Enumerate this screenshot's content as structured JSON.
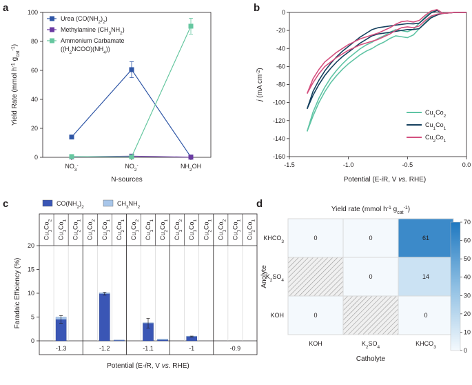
{
  "chart_data": [
    {
      "panel": "a",
      "type": "line",
      "xlabel": "N-sources",
      "ylabel": "Yield Rate (mmol h⁻¹ g₍cat₎⁻¹)",
      "ylabel_parts": {
        "main": "Yield Rate (mmol h",
        "sup1": "-1",
        "mid": " g",
        "sub": "cat",
        "sup2": "-1",
        "end": ")"
      },
      "categories": [
        "NO3-",
        "NO2-",
        "NH2OH"
      ],
      "category_labels": [
        {
          "main": "NO",
          "sub": "3",
          "sup": "-"
        },
        {
          "main": "NO",
          "sub": "2",
          "sup": "-"
        },
        {
          "main": "NH",
          "sub": "2",
          "end": "OH"
        }
      ],
      "ylim": [
        0,
        100
      ],
      "yticks": [
        0,
        20,
        40,
        60,
        80,
        100
      ],
      "series": [
        {
          "name": "Urea (CO(NH2)2)",
          "label_parts": {
            "main": "Urea (CO(NH",
            "sub": "2",
            "end": ")",
            "sub2": "2",
            "end2": ")"
          },
          "color": "#2f56a6",
          "values": [
            14,
            60.5,
            0.2
          ],
          "errors": [
            0.8,
            5.5,
            0.3
          ]
        },
        {
          "name": "Methylamine (CH3NH2)",
          "label_parts": {
            "main": "Methylamine (CH",
            "sub": "3",
            "end": "NH",
            "sub2": "2",
            "end2": ")"
          },
          "color": "#6a3aa2",
          "values": [
            0.3,
            0.8,
            0.1
          ],
          "errors": [
            0.2,
            0.3,
            0.2
          ]
        },
        {
          "name": "Ammonium Carbamate ((H2NCOO)(NH4))",
          "label_line1": "Ammonium Carbamate",
          "label_parts": {
            "main": "((H",
            "sub": "2",
            "end": "NCOO)(NH",
            "sub2": "4",
            "end2": "))"
          },
          "color": "#66c7a0",
          "values": [
            0.5,
            0.3,
            90.5
          ],
          "errors": [
            0.3,
            0.2,
            5.5
          ]
        }
      ]
    },
    {
      "panel": "b",
      "type": "line",
      "xlabel": "Potential (E-iR, V vs. RHE)",
      "xlabel_parts": {
        "a": "Potential (E-",
        "i": "i",
        "b": "R, V ",
        "vs": "vs.",
        "c": " RHE)"
      },
      "ylabel": "j (mA cm⁻²)",
      "ylabel_parts": {
        "j": "j",
        "main": " (mA cm",
        "sup": "-2",
        "end": ")"
      },
      "xlim": [
        -1.5,
        0.0
      ],
      "ylim": [
        -160,
        0
      ],
      "xticks": [
        -1.5,
        -1.0,
        -0.5,
        0.0
      ],
      "xtick_labels": [
        "-1.5",
        "-1.0",
        "-0.5",
        "0.0"
      ],
      "yticks": [
        0,
        -20,
        -40,
        -60,
        -80,
        -100,
        -120,
        -140,
        -160
      ],
      "series": [
        {
          "name": "Cu1Co2",
          "label_parts": {
            "a": "Cu",
            "s1": "1",
            "b": "Co",
            "s2": "2"
          },
          "color": "#5fc4a4",
          "x": [
            -1.35,
            -1.3,
            -1.25,
            -1.2,
            -1.15,
            -1.1,
            -1.05,
            -1.0,
            -0.95,
            -0.9,
            -0.85,
            -0.8,
            -0.75,
            -0.7,
            -0.65,
            -0.6,
            -0.55,
            -0.5,
            -0.45,
            -0.4,
            -0.35,
            -0.3,
            -0.25,
            -0.2,
            -0.15,
            -0.1,
            -0.05,
            0.0
          ],
          "y": [
            -132,
            -115,
            -100,
            -88,
            -78,
            -70,
            -63,
            -57,
            -52,
            -47,
            -43,
            -40,
            -36,
            -33,
            -29,
            -26,
            -27,
            -28,
            -25,
            -18,
            -11,
            -5,
            -2,
            -1,
            -0.5,
            0,
            0,
            0
          ]
        },
        {
          "name": "Cu1Co1",
          "label_parts": {
            "a": "Cu",
            "s1": "1",
            "b": "Co",
            "s2": "1"
          },
          "color": "#15405e",
          "x": [
            -1.35,
            -1.3,
            -1.25,
            -1.2,
            -1.15,
            -1.1,
            -1.05,
            -1.0,
            -0.95,
            -0.9,
            -0.85,
            -0.8,
            -0.75,
            -0.7,
            -0.65,
            -0.6,
            -0.55,
            -0.5,
            -0.45,
            -0.4,
            -0.35,
            -0.3,
            -0.25,
            -0.2,
            -0.15,
            -0.1,
            -0.05,
            0.0
          ],
          "y": [
            -107,
            -92,
            -80,
            -70,
            -62,
            -55,
            -49,
            -44,
            -39,
            -34,
            -30,
            -26,
            -24,
            -23,
            -22,
            -21,
            -20,
            -19,
            -19,
            -18,
            -12,
            -6,
            -3,
            -1,
            -0.5,
            0,
            0,
            0
          ]
        },
        {
          "name": "Cu2Co1",
          "label_parts": {
            "a": "Cu",
            "s1": "2",
            "b": "Co",
            "s2": "1"
          },
          "color": "#d4507f",
          "x": [
            -1.35,
            -1.3,
            -1.25,
            -1.2,
            -1.15,
            -1.1,
            -1.05,
            -1.0,
            -0.95,
            -0.9,
            -0.85,
            -0.8,
            -0.75,
            -0.7,
            -0.65,
            -0.6,
            -0.55,
            -0.5,
            -0.45,
            -0.4,
            -0.35,
            -0.3,
            -0.25,
            -0.2,
            -0.15,
            -0.1,
            -0.05,
            0.0
          ],
          "y": [
            -90,
            -78,
            -68,
            -60,
            -55,
            -50,
            -46,
            -42,
            -39,
            -36,
            -34,
            -32,
            -30,
            -27,
            -24,
            -20,
            -17,
            -16,
            -17,
            -15,
            -9,
            -4,
            -2,
            -1,
            -0.5,
            0,
            0,
            0
          ]
        }
      ]
    },
    {
      "panel": "c",
      "type": "bar",
      "xlabel": "Potential (E-iR, V vs. RHE)",
      "xlabel_parts": {
        "a": "Potential (E-",
        "i": "i",
        "b": "R, V ",
        "vs": "vs.",
        "c": " RHE)"
      },
      "ylabel": "Faradaic Efficiency (%)",
      "ylim": [
        0,
        20
      ],
      "yticks": [
        0,
        5,
        10,
        15,
        20
      ],
      "groups": [
        "-1.3",
        "-1.2",
        "-1.1",
        "-1",
        "-0.9"
      ],
      "subcategories": [
        "Cu1Co2",
        "Cu1Co1",
        "Cu2Co1"
      ],
      "subcategory_parts": [
        {
          "a": "Cu",
          "s1": "1",
          "b": "Co",
          "s2": "2"
        },
        {
          "a": "Cu",
          "s1": "1",
          "b": "Co",
          "s2": "1"
        },
        {
          "a": "Cu",
          "s1": "2",
          "b": "Co",
          "s2": "1"
        }
      ],
      "series": [
        {
          "name": "CO(NH2)2",
          "label_parts": {
            "main": "CO(NH",
            "sub": "2",
            "end": ")",
            "sub2": "2"
          },
          "color": "#3a56b5",
          "values": [
            [
              0,
              4.5,
              0
            ],
            [
              0,
              9.9,
              0.1
            ],
            [
              0,
              3.7,
              0.2
            ],
            [
              0,
              0.9,
              0
            ],
            [
              0,
              0,
              0
            ]
          ],
          "errors": [
            [
              0,
              0.8,
              0
            ],
            [
              0,
              0.3,
              0
            ],
            [
              0,
              1.0,
              0
            ],
            [
              0,
              0.1,
              0
            ],
            [
              0,
              0,
              0
            ]
          ]
        },
        {
          "name": "CH3NH2",
          "label_parts": {
            "main": "CH",
            "sub": "3",
            "end": "NH",
            "sub2": "2"
          },
          "color": "#a8c6ea",
          "values": [
            [
              0,
              0.5,
              0
            ],
            [
              0,
              0.2,
              0.1
            ],
            [
              0,
              0.1,
              0.2
            ],
            [
              0,
              0.1,
              0
            ],
            [
              0,
              0,
              0
            ]
          ]
        }
      ]
    },
    {
      "panel": "d",
      "type": "heatmap",
      "title": "Yield rate (mmol h⁻¹ g₍cat₎⁻¹)",
      "title_parts": {
        "main": "Yield rate (mmol h",
        "sup1": "-1",
        "mid": " g",
        "sub": "cat",
        "sup2": "-1",
        "end": ")"
      },
      "xlabel": "Catholyte",
      "ylabel": "Anolyte",
      "columns": [
        "KOH",
        "K2SO4",
        "KHCO3"
      ],
      "column_parts": [
        {
          "main": "KOH"
        },
        {
          "main": "K",
          "sub": "2",
          "end": "SO",
          "sub2": "4"
        },
        {
          "main": "KHCO",
          "sub": "3"
        }
      ],
      "rows": [
        "KHCO3",
        "K2SO4",
        "KOH"
      ],
      "row_parts": [
        {
          "main": "KHCO",
          "sub": "3"
        },
        {
          "main": "K",
          "sub": "2",
          "end": "SO",
          "sub2": "4"
        },
        {
          "main": "KOH"
        }
      ],
      "values": [
        [
          0,
          0,
          61
        ],
        [
          null,
          0,
          14
        ],
        [
          0,
          null,
          0
        ]
      ],
      "value_labels": [
        [
          "0",
          "0",
          "61"
        ],
        [
          "",
          "0",
          "14"
        ],
        [
          "0",
          "",
          "0"
        ]
      ],
      "colorbar": {
        "min": 0,
        "max": 70,
        "ticks": [
          0,
          10,
          20,
          30,
          40,
          50,
          60,
          70
        ],
        "color_low": "#f4f9fd",
        "color_high": "#1f78c0"
      }
    }
  ],
  "panel_labels": [
    "a",
    "b",
    "c",
    "d"
  ]
}
